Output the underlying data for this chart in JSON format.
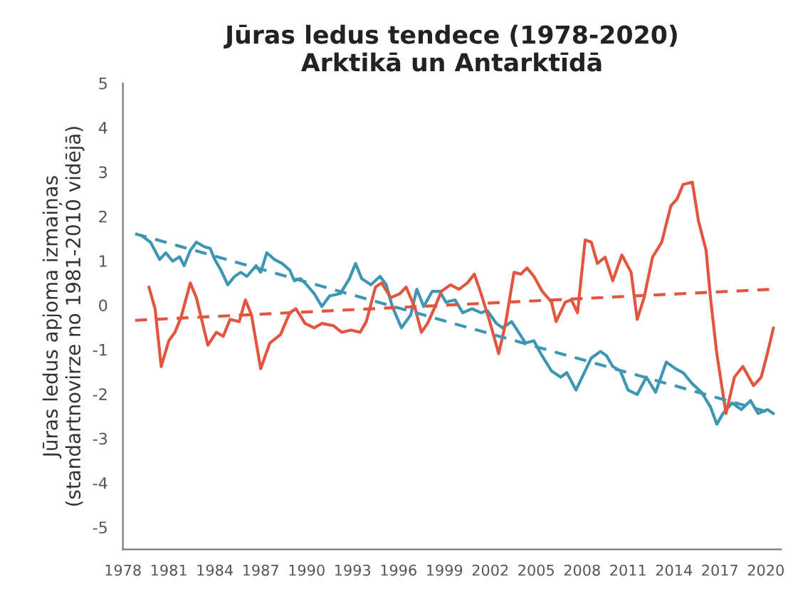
{
  "chart_data": {
    "type": "line",
    "title": "Jūras ledus tendece (1978-2020)\nArktikā un Antarktīdā",
    "ylabel": "Jūras ledus apjoma izmaiņas\n(standartnovirze no 1981-2010 vidējā)",
    "xlim": [
      1978,
      2021
    ],
    "xticks": [
      1978,
      1981,
      1984,
      1987,
      1990,
      1993,
      1996,
      1999,
      2002,
      2005,
      2008,
      2011,
      2014,
      2017,
      2020
    ],
    "ylim": [
      -5.5,
      5
    ],
    "yticks": [
      -5,
      -4,
      -3,
      -2,
      -1,
      0,
      1,
      2,
      3,
      4,
      5
    ],
    "grid": false,
    "legend": false,
    "series": [
      {
        "color": "#3d97b2",
        "line_style": "solid",
        "x": [
          1979.2,
          1979.8,
          1980.4,
          1980.8,
          1981.25,
          1981.7,
          1982.0,
          1982.4,
          1982.8,
          1983.3,
          1983.7,
          1984.0,
          1984.4,
          1984.85,
          1985.3,
          1985.7,
          1986.1,
          1986.7,
          1987.0,
          1987.4,
          1987.9,
          1988.4,
          1988.9,
          1989.2,
          1989.6,
          1990.0,
          1990.5,
          1991.0,
          1991.5,
          1992.2,
          1992.8,
          1993.2,
          1993.6,
          1994.2,
          1994.8,
          1995.2,
          1995.6,
          1996.2,
          1996.8,
          1997.2,
          1997.65,
          1998.2,
          1998.7,
          1999.1,
          1999.7,
          2000.2,
          2000.8,
          2001.4,
          2001.8,
          2002.4,
          2002.8,
          2003.4,
          2003.85,
          2004.3,
          2004.85,
          2005.3,
          2006.0,
          2006.6,
          2007.0,
          2007.6,
          2008.0,
          2008.6,
          2009.2,
          2009.6,
          2010.0,
          2010.5,
          2011.0,
          2011.6,
          2012.2,
          2012.8,
          2013.5,
          2014.1,
          2014.6,
          2015.2,
          2015.8,
          2016.4,
          2016.8,
          2017.2,
          2017.8,
          2018.4,
          2019.0,
          2019.5,
          2020.1,
          2020.5
        ],
        "values": [
          1.57,
          1.42,
          1.03,
          1.18,
          0.99,
          1.09,
          0.89,
          1.23,
          1.42,
          1.32,
          1.28,
          1.03,
          0.79,
          0.46,
          0.65,
          0.74,
          0.65,
          0.89,
          0.74,
          1.18,
          1.03,
          0.94,
          0.79,
          0.55,
          0.6,
          0.46,
          0.26,
          -0.03,
          0.21,
          0.26,
          0.6,
          0.94,
          0.6,
          0.46,
          0.65,
          0.46,
          -0.03,
          -0.51,
          -0.22,
          0.36,
          -0.03,
          0.31,
          0.31,
          0.07,
          0.12,
          -0.17,
          -0.08,
          -0.17,
          -0.12,
          -0.41,
          -0.51,
          -0.37,
          -0.61,
          -0.85,
          -0.8,
          -1.09,
          -1.48,
          -1.62,
          -1.52,
          -1.91,
          -1.62,
          -1.19,
          -1.04,
          -1.14,
          -1.38,
          -1.48,
          -1.91,
          -2.01,
          -1.62,
          -1.96,
          -1.28,
          -1.43,
          -1.52,
          -1.77,
          -1.96,
          -2.3,
          -2.68,
          -2.44,
          -2.2,
          -2.35,
          -2.15,
          -2.44,
          -2.35,
          -2.44
        ]
      },
      {
        "color": "#e2553f",
        "line_style": "solid",
        "x": [
          1979.7,
          1980.1,
          1980.5,
          1981.0,
          1981.4,
          1981.8,
          1982.4,
          1982.8,
          1983.55,
          1984.1,
          1984.55,
          1985.0,
          1985.6,
          1986.0,
          1986.4,
          1987.0,
          1987.6,
          1988.3,
          1988.9,
          1989.3,
          1989.9,
          1990.5,
          1991.0,
          1991.75,
          1992.3,
          1992.9,
          1993.5,
          1993.9,
          1994.5,
          1994.9,
          1995.5,
          1996.1,
          1996.5,
          1997.1,
          1997.5,
          1997.9,
          1998.4,
          1998.8,
          1999.4,
          1999.95,
          2000.5,
          2000.96,
          2001.4,
          2002.0,
          2002.55,
          2003.0,
          2003.55,
          2004.0,
          2004.4,
          2004.85,
          2005.4,
          2006.0,
          2006.3,
          2006.9,
          2007.3,
          2007.7,
          2008.2,
          2008.6,
          2009.0,
          2009.5,
          2010.0,
          2010.6,
          2011.2,
          2011.6,
          2012.05,
          2012.6,
          2013.2,
          2013.8,
          2014.2,
          2014.6,
          2015.2,
          2015.6,
          2016.1,
          2016.4,
          2016.8,
          2017.4,
          2017.95,
          2018.5,
          2019.2,
          2019.7,
          2020.1,
          2020.5
        ],
        "values": [
          0.41,
          -0.08,
          -1.38,
          -0.8,
          -0.61,
          -0.27,
          0.5,
          0.17,
          -0.9,
          -0.61,
          -0.7,
          -0.32,
          -0.37,
          0.12,
          -0.22,
          -1.43,
          -0.85,
          -0.66,
          -0.17,
          -0.08,
          -0.41,
          -0.51,
          -0.41,
          -0.46,
          -0.61,
          -0.56,
          -0.61,
          -0.37,
          0.41,
          0.5,
          0.17,
          0.26,
          0.41,
          -0.08,
          -0.61,
          -0.41,
          -0.03,
          0.31,
          0.46,
          0.36,
          0.5,
          0.7,
          0.26,
          -0.41,
          -1.09,
          -0.41,
          0.74,
          0.7,
          0.84,
          0.65,
          0.31,
          0.07,
          -0.37,
          0.07,
          0.12,
          -0.17,
          1.47,
          1.42,
          0.94,
          1.08,
          0.55,
          1.13,
          0.74,
          -0.32,
          0.17,
          1.08,
          1.42,
          2.24,
          2.39,
          2.72,
          2.77,
          1.9,
          1.23,
          0.12,
          -1.09,
          -2.44,
          -1.62,
          -1.38,
          -1.81,
          -1.62,
          -1.09,
          -0.51
        ]
      },
      {
        "color": "#3d97b2",
        "line_style": "dashed",
        "x": [
          1978.8,
          2020.5
        ],
        "values": [
          1.61,
          -2.44
        ]
      },
      {
        "color": "#e2553f",
        "line_style": "dashed",
        "x": [
          1978.8,
          2020.5
        ],
        "values": [
          -0.34,
          0.36
        ]
      }
    ]
  }
}
